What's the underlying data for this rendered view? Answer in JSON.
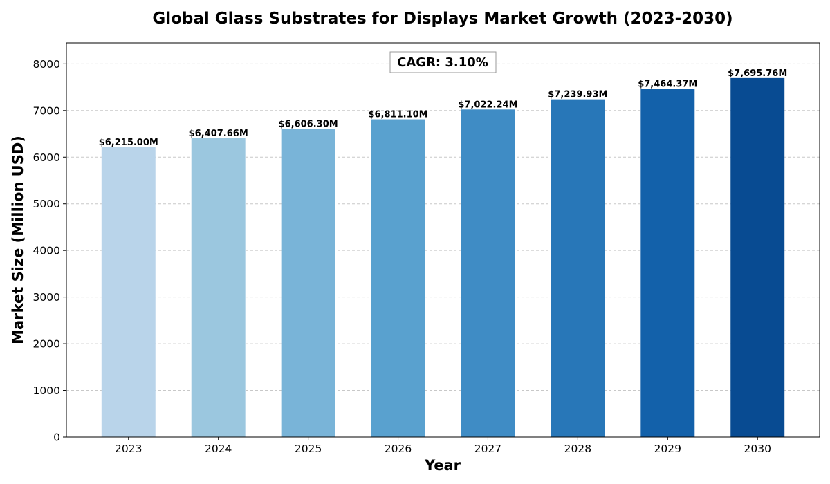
{
  "chart_data": {
    "type": "bar",
    "title": "Global Glass Substrates for Displays Market Growth (2023-2030)",
    "xlabel": "Year",
    "ylabel": "Market Size (Million USD)",
    "categories": [
      "2023",
      "2024",
      "2025",
      "2026",
      "2027",
      "2028",
      "2029",
      "2030"
    ],
    "values": [
      6215.0,
      6407.66,
      6606.3,
      6811.1,
      7022.24,
      7239.93,
      7464.37,
      7695.76
    ],
    "value_labels": [
      "$6,215.00M",
      "$6,407.66M",
      "$6,606.30M",
      "$6,811.10M",
      "$7,022.24M",
      "$7,239.93M",
      "$7,464.37M",
      "$7,695.76M"
    ],
    "colors": [
      "#b9d4ea",
      "#9bc7df",
      "#79b4d8",
      "#59a1cf",
      "#3f8cc5",
      "#2877b8",
      "#1361aa",
      "#084b92"
    ],
    "ylim": [
      0,
      8450
    ],
    "yticks": [
      0,
      1000,
      2000,
      3000,
      4000,
      5000,
      6000,
      7000,
      8000
    ],
    "ytick_labels": [
      "0",
      "1000",
      "2000",
      "3000",
      "4000",
      "5000",
      "6000",
      "7000",
      "8000"
    ],
    "grid": true,
    "annotation": "CAGR: 3.10%"
  }
}
